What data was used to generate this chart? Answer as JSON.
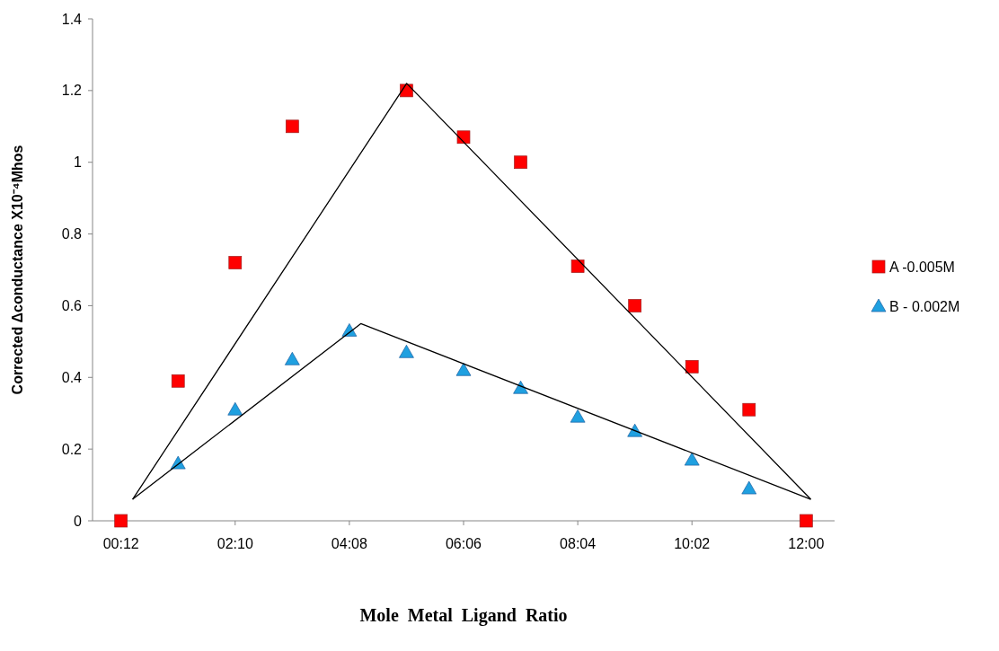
{
  "chart_data": {
    "type": "scatter",
    "xlabel": "Mole  Metal  Ligand  Ratio",
    "ylabel": "Corrected Δconductance X10⁻⁴Mhos",
    "x": [
      0.2,
      1.18333,
      2.16667,
      3.15,
      4.13333,
      5.11667,
      6.1,
      7.08333,
      8.06667,
      9.05,
      10.03333,
      11.01667,
      12
    ],
    "xlim": [
      -0.29,
      12.49
    ],
    "xticks": [
      {
        "value": 0.2,
        "label": "00:12"
      },
      {
        "value": 2.16667,
        "label": "02:10"
      },
      {
        "value": 4.13333,
        "label": "04:08"
      },
      {
        "value": 6.1,
        "label": "06:06"
      },
      {
        "value": 8.06667,
        "label": "08:04"
      },
      {
        "value": 10.03333,
        "label": "10:02"
      },
      {
        "value": 12,
        "label": "12:00"
      }
    ],
    "ylim": [
      0,
      1.4
    ],
    "yticks": [
      0,
      0.2,
      0.4,
      0.6,
      0.8,
      1,
      1.2,
      1.4
    ],
    "grid": false,
    "legend": "right",
    "series": [
      {
        "name": "A -0.005M",
        "color": "#ff0000",
        "marker": "square",
        "values": [
          0,
          0.39,
          0.72,
          1.1,
          null,
          1.2,
          1.07,
          1.0,
          0.71,
          0.6,
          0.43,
          0.31,
          0
        ]
      },
      {
        "name": "B - 0.002M",
        "color": "#1fa0e0",
        "marker": "triangle",
        "values": [
          null,
          0.16,
          0.31,
          0.45,
          0.53,
          0.47,
          0.42,
          0.37,
          0.29,
          0.25,
          0.17,
          0.09,
          null
        ]
      },
      {
        "type": "line",
        "color": "#000000",
        "x": [
          0.4,
          5.12,
          12.08
        ],
        "values": [
          0.06,
          1.22,
          0.06
        ]
      },
      {
        "type": "line",
        "color": "#000000",
        "x": [
          0.4,
          4.33,
          12.08
        ],
        "values": [
          0.06,
          0.55,
          0.06
        ]
      }
    ]
  }
}
